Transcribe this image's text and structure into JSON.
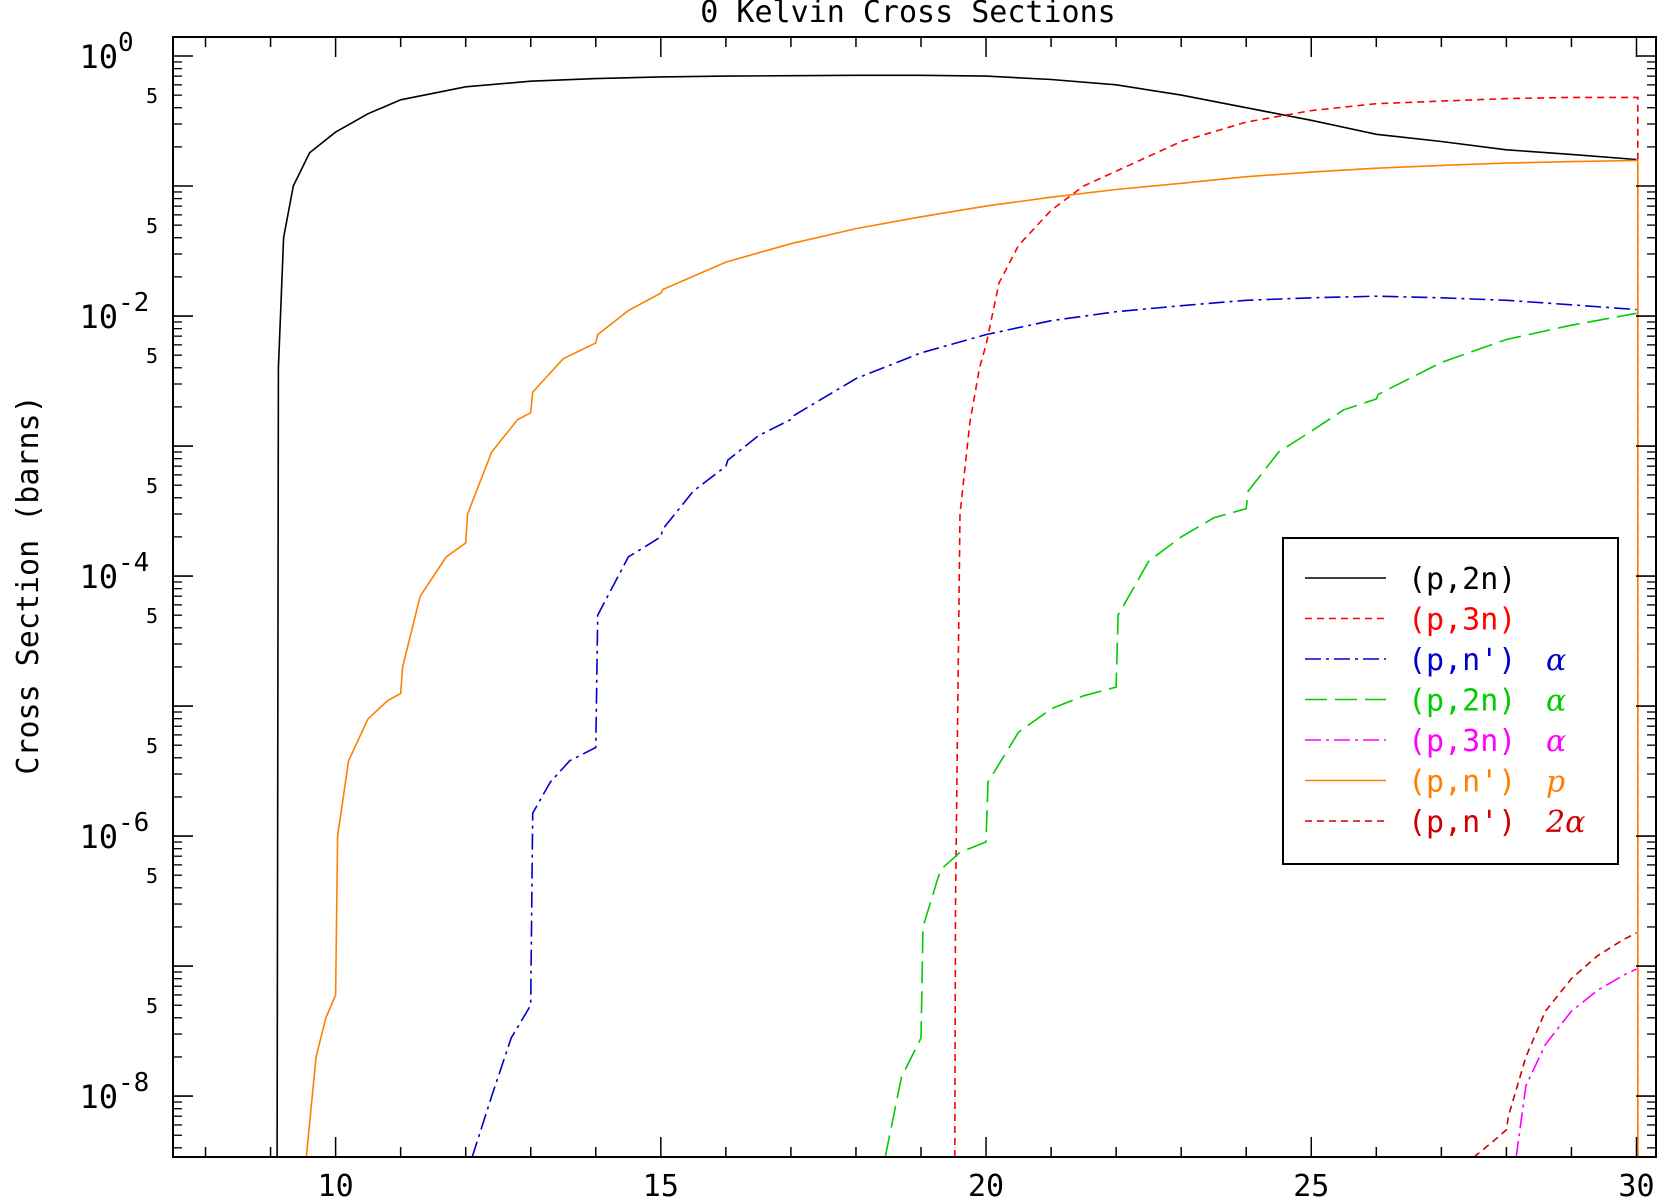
{
  "chart_data": {
    "type": "line",
    "title": "0 Kelvin Cross Sections",
    "xlabel": "",
    "ylabel": "Cross Section (barns)",
    "xlim": [
      7.5,
      30.3
    ],
    "ylim": [
      3.4e-09,
      1.4
    ],
    "y_scale": "log",
    "grid": false,
    "legend_position": "right",
    "x_ticks": [
      10,
      15,
      20,
      25,
      30
    ],
    "x_tick_labels": [
      "10",
      "15",
      "20",
      "25",
      "30"
    ],
    "y_major_ticks": [
      {
        "value": 1,
        "base": "10",
        "exp": "0"
      },
      {
        "value": 0.01,
        "base": "10",
        "exp": "-2"
      },
      {
        "value": 0.0001,
        "base": "10",
        "exp": "-4"
      },
      {
        "value": 1e-06,
        "base": "10",
        "exp": "-6"
      },
      {
        "value": 1e-08,
        "base": "10",
        "exp": "-8"
      }
    ],
    "y_mid_ticks": [
      0.1,
      0.001,
      1e-05,
      1e-07
    ],
    "y_five_label": "5",
    "y_five_ticks": [
      0.5,
      0.05,
      0.005,
      0.0005,
      5e-05,
      5e-06,
      5e-07,
      5e-08
    ],
    "series": [
      {
        "name": "(p,2n)",
        "legend_prefix": "(p,2n)",
        "legend_suffix": "",
        "color": "#000000",
        "dash": "",
        "x": [
          9.1,
          9.12,
          9.2,
          9.35,
          9.6,
          10.0,
          10.5,
          11.0,
          12.0,
          13.0,
          14.0,
          15.0,
          16.0,
          17.0,
          18.0,
          19.0,
          20.0,
          21.0,
          22.0,
          23.0,
          24.0,
          25.0,
          26.0,
          27.0,
          28.0,
          29.0,
          30.0
        ],
        "y": [
          3.4e-09,
          0.004,
          0.04,
          0.1,
          0.18,
          0.26,
          0.36,
          0.46,
          0.58,
          0.64,
          0.67,
          0.69,
          0.7,
          0.705,
          0.71,
          0.71,
          0.7,
          0.66,
          0.6,
          0.5,
          0.4,
          0.32,
          0.25,
          0.22,
          0.19,
          0.175,
          0.16
        ]
      },
      {
        "name": "(p,3n)",
        "legend_prefix": "(p,3n)",
        "legend_suffix": "",
        "color": "#ff0000",
        "dash": "7,5",
        "x": [
          19.52,
          19.53,
          19.6,
          19.75,
          19.9,
          20.0,
          20.2,
          20.5,
          21.0,
          21.5,
          22.0,
          23.0,
          24.0,
          25.0,
          26.0,
          27.0,
          28.0,
          29.0,
          30.0,
          30.02,
          30.02
        ],
        "y": [
          3.4e-09,
          3e-07,
          0.0003,
          0.0015,
          0.004,
          0.006,
          0.018,
          0.035,
          0.065,
          0.1,
          0.13,
          0.22,
          0.31,
          0.38,
          0.43,
          0.45,
          0.47,
          0.48,
          0.48,
          0.48,
          3.4e-09
        ]
      },
      {
        "name": "(p,n') α",
        "legend_prefix": "(p,n')",
        "legend_suffix": "α",
        "color": "#0000cc",
        "dash": "16,5,3,5",
        "x": [
          12.1,
          12.4,
          12.7,
          13.0,
          13.03,
          13.3,
          13.6,
          14.0,
          14.03,
          14.5,
          15.0,
          15.03,
          15.5,
          16.0,
          16.03,
          16.5,
          17.0,
          17.03,
          18.0,
          19.0,
          20.0,
          21.0,
          22.0,
          23.0,
          24.0,
          25.0,
          26.0,
          27.0,
          28.0,
          29.0,
          30.0
        ],
        "y": [
          3.4e-09,
          1e-08,
          2.8e-08,
          5e-08,
          1.5e-06,
          2.6e-06,
          3.8e-06,
          4.8e-06,
          5e-05,
          0.00014,
          0.0002,
          0.00023,
          0.00045,
          0.0007,
          0.00078,
          0.0012,
          0.0016,
          0.0017,
          0.0033,
          0.0052,
          0.0072,
          0.0092,
          0.0108,
          0.012,
          0.0132,
          0.0138,
          0.0142,
          0.0138,
          0.0132,
          0.0122,
          0.0112
        ]
      },
      {
        "name": "(p,2n) α",
        "legend_prefix": "(p,2n)",
        "legend_suffix": "α",
        "color": "#00cc00",
        "dash": "22,8",
        "x": [
          18.45,
          18.7,
          19.0,
          19.03,
          19.3,
          19.6,
          20.0,
          20.03,
          20.5,
          21.0,
          21.5,
          22.0,
          22.03,
          22.5,
          23.0,
          23.5,
          24.0,
          24.03,
          24.5,
          25.0,
          25.5,
          26.0,
          26.03,
          27.0,
          28.0,
          29.0,
          30.0
        ],
        "y": [
          3.4e-09,
          1.4e-08,
          2.8e-08,
          2e-07,
          5.5e-07,
          7.5e-07,
          9e-07,
          2.6e-06,
          6.3e-06,
          9.5e-06,
          1.2e-05,
          1.4e-05,
          5e-05,
          0.00013,
          0.0002,
          0.00028,
          0.00033,
          0.00045,
          0.0009,
          0.0013,
          0.0019,
          0.0023,
          0.0025,
          0.0044,
          0.0066,
          0.0085,
          0.0105
        ]
      },
      {
        "name": "(p,3n) α",
        "legend_prefix": "(p,3n)",
        "legend_suffix": "α",
        "color": "#ff00ff",
        "dash": "16,5,3,5",
        "x": [
          28.15,
          28.3,
          28.6,
          29.0,
          29.4,
          29.8,
          30.0
        ],
        "y": [
          3.4e-09,
          1.2e-08,
          2.5e-08,
          4.5e-08,
          6.5e-08,
          8.5e-08,
          9.5e-08
        ]
      },
      {
        "name": "(p,n') p",
        "legend_prefix": "(p,n')",
        "legend_suffix": "p",
        "color": "#ff8000",
        "dash": "",
        "x": [
          9.55,
          9.7,
          9.85,
          10.0,
          10.03,
          10.2,
          10.5,
          10.8,
          11.0,
          11.03,
          11.3,
          11.7,
          12.0,
          12.03,
          12.4,
          12.8,
          13.0,
          13.03,
          13.5,
          14.0,
          14.03,
          14.5,
          15.0,
          15.03,
          16.0,
          17.0,
          18.0,
          19.0,
          20.0,
          21.0,
          22.0,
          23.0,
          24.0,
          25.0,
          26.0,
          27.0,
          28.0,
          29.0,
          30.0,
          30.02,
          30.02
        ],
        "y": [
          3.4e-09,
          2e-08,
          4e-08,
          6e-08,
          1e-06,
          3.8e-06,
          8e-06,
          1.1e-05,
          1.25e-05,
          2e-05,
          7e-05,
          0.00014,
          0.00018,
          0.0003,
          0.0009,
          0.0016,
          0.0018,
          0.0026,
          0.0047,
          0.0062,
          0.0072,
          0.011,
          0.015,
          0.016,
          0.026,
          0.036,
          0.047,
          0.058,
          0.07,
          0.082,
          0.094,
          0.105,
          0.118,
          0.128,
          0.137,
          0.144,
          0.15,
          0.154,
          0.157,
          0.157,
          3.4e-09
        ]
      },
      {
        "name": "(p,n') 2α",
        "legend_prefix": "(p,n')",
        "legend_suffix": "2α",
        "color": "#cc0000",
        "dash": "7,5",
        "x": [
          27.5,
          27.8,
          28.0,
          28.03,
          28.3,
          28.6,
          29.0,
          29.4,
          29.8,
          30.0
        ],
        "y": [
          3.4e-09,
          4.5e-09,
          5.5e-09,
          7e-09,
          2e-08,
          4.5e-08,
          8e-08,
          1.2e-07,
          1.6e-07,
          1.8e-07
        ]
      }
    ]
  }
}
